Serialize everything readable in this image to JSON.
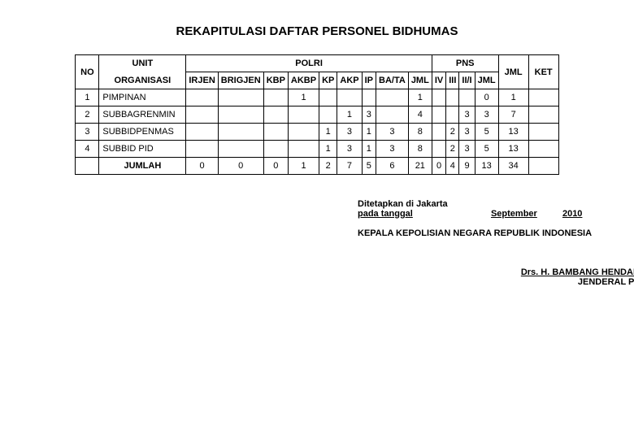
{
  "title": "REKAPITULASI DAFTAR PERSONEL BIDHUMAS",
  "header": {
    "no": "NO",
    "unit_org_top": "UNIT",
    "unit_org_bottom": "ORGANISASI",
    "polri": "POLRI",
    "pns": "PNS",
    "jml_total": "JML",
    "ket": "KET",
    "polri_cols": [
      "IRJEN",
      "BRIGJEN",
      "KBP",
      "AKBP",
      "KP",
      "AKP",
      "IP",
      "BA/TA",
      "JML"
    ],
    "pns_cols": [
      "IV",
      "III",
      "II/I",
      "JML"
    ]
  },
  "rows": [
    {
      "no": "1",
      "unit": "PIMPINAN",
      "cells": [
        "",
        "",
        "",
        "1",
        "",
        "",
        "",
        "",
        "1",
        "",
        "",
        "",
        "0",
        "1",
        ""
      ]
    },
    {
      "no": "2",
      "unit": "SUBBAGRENMIN",
      "cells": [
        "",
        "",
        "",
        "",
        "",
        "1",
        "3",
        "",
        "4",
        "",
        "",
        "3",
        "3",
        "7",
        ""
      ]
    },
    {
      "no": "3",
      "unit": "SUBBIDPENMAS",
      "cells": [
        "",
        "",
        "",
        "",
        "1",
        "3",
        "1",
        "3",
        "8",
        "",
        "2",
        "3",
        "5",
        "13",
        ""
      ]
    },
    {
      "no": "4",
      "unit": "SUBBID PID",
      "cells": [
        "",
        "",
        "",
        "",
        "1",
        "3",
        "1",
        "3",
        "8",
        "",
        "2",
        "3",
        "5",
        "13",
        ""
      ]
    }
  ],
  "total": {
    "label": "JUMLAH",
    "cells": [
      "0",
      "0",
      "0",
      "1",
      "2",
      "7",
      "5",
      "6",
      "21",
      "0",
      "4",
      "9",
      "13",
      "34",
      ""
    ]
  },
  "signature": {
    "loc": "Ditetapkan di Jakarta",
    "date_prefix": "pada tanggal",
    "month": "September",
    "year": "2010",
    "kepala": "KEPALA KEPOLISIAN NEGARA REPUBLIK INDONESIA",
    "name": "Drs. H. BAMBANG HENDARSO DANURI, M.M.",
    "rank": "JENDERAL POLISI"
  }
}
